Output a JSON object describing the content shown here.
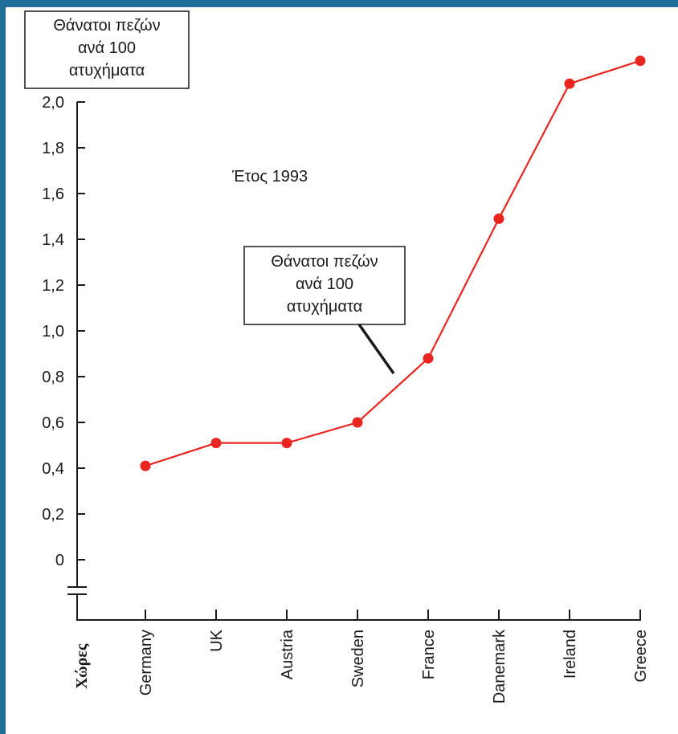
{
  "frame": {
    "accent_color": "#1f6f98"
  },
  "chart_data": {
    "type": "line",
    "title": "",
    "annotation_year": "Έτος 1993",
    "ylabel_lines": [
      "Θάνατοι πεζών",
      "ανά 100",
      "ατυχήματα"
    ],
    "callout_lines": [
      "Θάνατοι πεζών",
      "ανά 100",
      "ατυχήματα"
    ],
    "xlabel": "Χώρες",
    "categories": [
      "Germany",
      "UK",
      "Austria",
      "Sweden",
      "France",
      "Danemark",
      "Ireland",
      "Greece"
    ],
    "series": [
      {
        "values": [
          0.41,
          0.51,
          0.51,
          0.6,
          0.88,
          1.49,
          2.08,
          2.18
        ],
        "color": "#e8251f"
      }
    ],
    "ylim": [
      0,
      2.0
    ],
    "yticks": [
      "0",
      "0,2",
      "0,4",
      "0,6",
      "0,8",
      "1,0",
      "1,2",
      "1,4",
      "1,6",
      "1,8",
      "2,0"
    ],
    "axis_break": true,
    "grid": false
  }
}
